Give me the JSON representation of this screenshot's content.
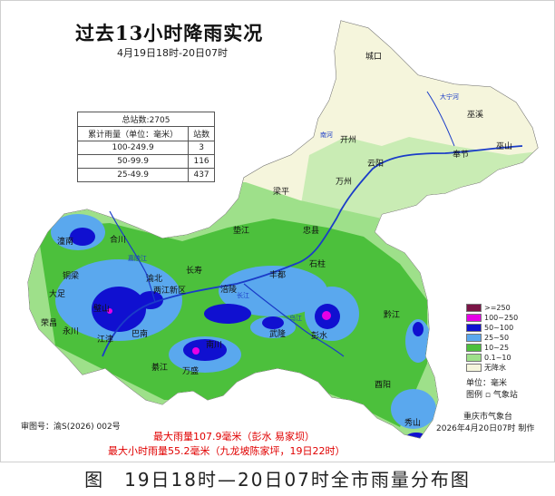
{
  "title": "过去13小时降雨实况",
  "subtitle": "4月19日18时-20日07时",
  "stats": {
    "total": "总站数:2705",
    "headers": [
      "累计雨量（单位：毫米）",
      "站数"
    ],
    "rows": [
      {
        "range": "100-249.9",
        "count": "3"
      },
      {
        "range": "50-99.9",
        "count": "116"
      },
      {
        "range": "25-49.9",
        "count": "437"
      }
    ]
  },
  "legend": {
    "items": [
      {
        "label": ">=250",
        "color": "#7a1446"
      },
      {
        "label": "100~250",
        "color": "#e600e6"
      },
      {
        "label": "50~100",
        "color": "#1010d0"
      },
      {
        "label": "25~50",
        "color": "#5aa8ee"
      },
      {
        "label": "10~25",
        "color": "#4cc03c"
      },
      {
        "label": "0.1~10",
        "color": "#9ee08a"
      },
      {
        "label": "无降水",
        "color": "#f5f5dc"
      }
    ],
    "unit": "单位：毫米",
    "station": "图例 ▫ 气象站"
  },
  "agency": "重庆市气象台",
  "made": "2026年4月20日07时 制作",
  "map_no": "审图号：渝S(2026) 002号",
  "max1": "最大雨量107.9毫米（彭水 易家坝）",
  "max2": "最大小时雨量55.2毫米（九龙坡陈家坪，19日22时）",
  "caption": "图　19日18时—20日07时全市雨量分布图",
  "places": {
    "chengkou": "城口",
    "wuxi": "巫溪",
    "kaizhou": "开州",
    "fengjie": "奉节",
    "wushan": "巫山",
    "yunyang": "云阳",
    "wanzhou": "万州",
    "liangping": "梁平",
    "dianjiang": "垫江",
    "zhongxian": "忠县",
    "shizhu": "石柱",
    "fengdu": "丰都",
    "changshou": "长寿",
    "fuling": "涪陵",
    "hechuan": "合川",
    "tongnan": "潼南",
    "tongliang": "铜梁",
    "dazu": "大足",
    "rongchang": "荣昌",
    "yongchuan": "永川",
    "bishan": "璧山",
    "jiangjin": "江津",
    "yubei": "渝北",
    "banan": "巴南",
    "liangjiang": "两江新区",
    "nanchuan": "南川",
    "qijiang": "綦江",
    "wansheng": "万盛",
    "wulong": "武隆",
    "pengshui": "彭水",
    "qianjiang": "黔江",
    "youyang": "酉阳",
    "xiushan": "秀山"
  },
  "rivers": {
    "daning": "大宁河",
    "nanhe": "南河",
    "yangtze": "长江",
    "jialing": "嘉陵江",
    "wujiang": "乌江"
  }
}
